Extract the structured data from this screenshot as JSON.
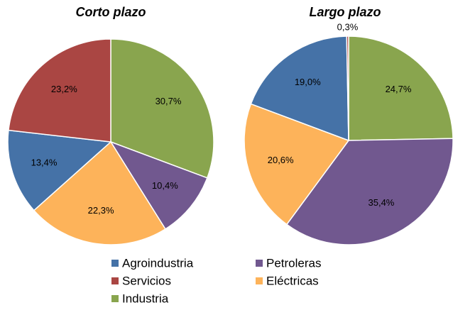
{
  "legend": [
    {
      "name": "Agroindustria",
      "color": "#4572a7"
    },
    {
      "name": "Petroleras",
      "color": "#71588f"
    },
    {
      "name": "Servicios",
      "color": "#aa4643"
    },
    {
      "name": "Eléctricas",
      "color": "#fdb35a"
    },
    {
      "name": "Industria",
      "color": "#89a54e"
    }
  ],
  "chart_data": [
    {
      "type": "pie",
      "title": "Corto plazo",
      "categories": [
        "Industria",
        "Petroleras",
        "Eléctricas",
        "Agroindustria",
        "Servicios"
      ],
      "values": [
        30.7,
        10.4,
        22.3,
        13.4,
        23.2
      ],
      "value_labels": [
        "30,7%",
        "10,4%",
        "22,3%",
        "13,4%",
        "23,2%"
      ]
    },
    {
      "type": "pie",
      "title": "Largo plazo",
      "categories": [
        "Industria",
        "Petroleras",
        "Eléctricas",
        "Agroindustria",
        "Servicios"
      ],
      "values": [
        24.7,
        35.4,
        20.6,
        19.0,
        0.3
      ],
      "value_labels": [
        "24,7%",
        "35,4%",
        "20,6%",
        "19,0%",
        "0,3%"
      ]
    }
  ]
}
